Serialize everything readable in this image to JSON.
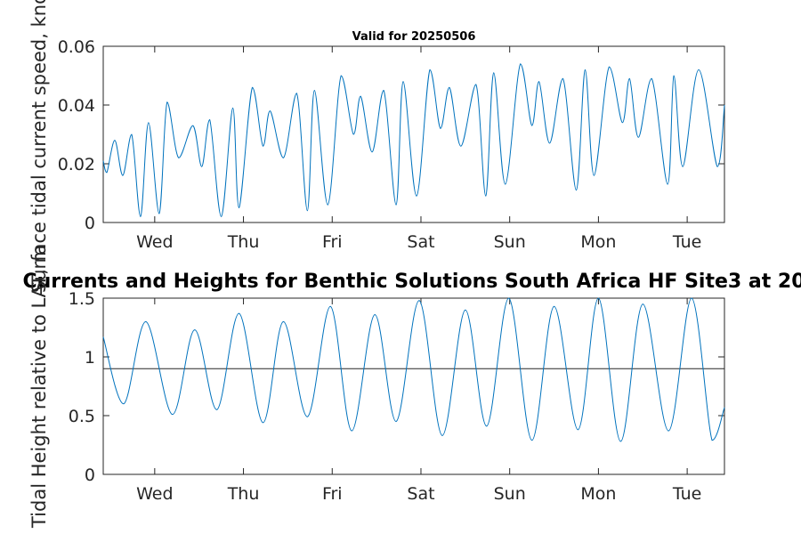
{
  "chart_data": [
    {
      "type": "line",
      "title": "Valid for 20250506",
      "ylabel": "Surface tidal current speed, knots",
      "xlabel": "",
      "x_ticks": [
        "Wed",
        "Thu",
        "Fri",
        "Sat",
        "Sun",
        "Mon",
        "Tue"
      ],
      "y_ticks": [
        "0",
        "0.02",
        "0.04",
        "0.06"
      ],
      "ylim": [
        0,
        0.06
      ],
      "xlim_days": [
        -0.58,
        6.42
      ],
      "grid": false,
      "color": "#0072BD",
      "series": [
        {
          "x_days": [
            -0.58,
            -0.54,
            -0.45,
            -0.36,
            -0.26,
            -0.16,
            -0.07,
            0.05,
            0.14,
            0.27,
            0.43,
            0.53,
            0.62,
            0.75,
            0.88,
            0.95,
            1.1,
            1.22,
            1.3,
            1.45,
            1.6,
            1.72,
            1.8,
            1.95,
            2.1,
            2.24,
            2.32,
            2.45,
            2.58,
            2.72,
            2.8,
            2.95,
            3.1,
            3.22,
            3.32,
            3.45,
            3.62,
            3.73,
            3.82,
            3.95,
            4.12,
            4.25,
            4.33,
            4.45,
            4.6,
            4.75,
            4.85,
            4.95,
            5.12,
            5.27,
            5.35,
            5.45,
            5.6,
            5.78,
            5.85,
            5.95,
            6.13,
            6.34,
            6.42
          ],
          "y": [
            0.021,
            0.017,
            0.028,
            0.016,
            0.03,
            0.002,
            0.034,
            0.003,
            0.041,
            0.022,
            0.033,
            0.019,
            0.035,
            0.002,
            0.039,
            0.005,
            0.046,
            0.026,
            0.038,
            0.022,
            0.044,
            0.004,
            0.045,
            0.006,
            0.05,
            0.03,
            0.043,
            0.024,
            0.045,
            0.006,
            0.048,
            0.009,
            0.052,
            0.032,
            0.046,
            0.026,
            0.047,
            0.009,
            0.051,
            0.013,
            0.054,
            0.033,
            0.048,
            0.027,
            0.049,
            0.011,
            0.052,
            0.016,
            0.053,
            0.034,
            0.049,
            0.029,
            0.049,
            0.013,
            0.05,
            0.019,
            0.052,
            0.019,
            0.04
          ]
        }
      ]
    },
    {
      "type": "line",
      "title": "Currents and Heights for Benthic Solutions South Africa HF Site3 at 20",
      "ylabel": "Tidal Height relative to LAT, m",
      "xlabel": "",
      "x_ticks": [
        "Wed",
        "Thu",
        "Fri",
        "Sat",
        "Sun",
        "Mon",
        "Tue"
      ],
      "y_ticks": [
        "0",
        "0.5",
        "1",
        "1.5"
      ],
      "ylim": [
        0,
        1.5
      ],
      "xlim_days": [
        -0.58,
        6.42
      ],
      "grid": false,
      "reference_line": 0.9,
      "color": "#0072BD",
      "series": [
        {
          "x_days": [
            -0.58,
            -0.35,
            -0.1,
            0.2,
            0.45,
            0.7,
            0.95,
            1.22,
            1.45,
            1.72,
            1.98,
            2.22,
            2.48,
            2.72,
            2.98,
            3.24,
            3.5,
            3.74,
            3.99,
            4.25,
            4.5,
            4.77,
            5.0,
            5.25,
            5.5,
            5.79,
            6.05,
            6.28,
            6.42
          ],
          "y": [
            1.17,
            0.6,
            1.3,
            0.51,
            1.23,
            0.55,
            1.37,
            0.44,
            1.3,
            0.49,
            1.43,
            0.37,
            1.36,
            0.45,
            1.48,
            0.33,
            1.4,
            0.41,
            1.5,
            0.29,
            1.43,
            0.38,
            1.5,
            0.28,
            1.45,
            0.37,
            1.5,
            0.29,
            0.57
          ]
        }
      ]
    }
  ]
}
